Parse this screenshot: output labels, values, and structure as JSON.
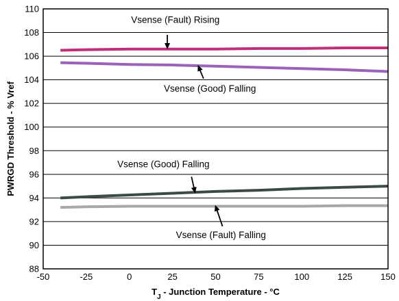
{
  "chart_data": {
    "type": "line",
    "xlabel_main": "T",
    "xlabel_sub": "J",
    "xlabel_rest": " - Junction Temperature - °C",
    "ylabel": "PWRGD Threshold - % Vref",
    "xlim": [
      -50,
      150
    ],
    "ylim": [
      88,
      110
    ],
    "xticks": [
      -50,
      -25,
      0,
      25,
      50,
      75,
      100,
      125,
      150
    ],
    "yticks": [
      88,
      90,
      92,
      94,
      96,
      98,
      100,
      102,
      104,
      106,
      108,
      110
    ],
    "grid": true,
    "series": [
      {
        "name": "Vsense (Fault) Rising",
        "color": "#c0307a",
        "x": [
          -40,
          -25,
          0,
          25,
          50,
          75,
          100,
          125,
          150
        ],
        "y": [
          106.5,
          106.55,
          106.6,
          106.6,
          106.6,
          106.65,
          106.65,
          106.7,
          106.7
        ]
      },
      {
        "name": "Vsense (Good) Falling",
        "color": "#9a62b8",
        "x": [
          -40,
          -25,
          0,
          25,
          50,
          75,
          100,
          125,
          150
        ],
        "y": [
          105.45,
          105.4,
          105.3,
          105.25,
          105.15,
          105.05,
          104.95,
          104.85,
          104.7
        ]
      },
      {
        "name": "Vsense (Good) Falling",
        "color": "#3c4a47",
        "x": [
          -40,
          -25,
          0,
          25,
          50,
          75,
          100,
          125,
          150
        ],
        "y": [
          94.0,
          94.1,
          94.25,
          94.4,
          94.55,
          94.65,
          94.8,
          94.9,
          95.0
        ]
      },
      {
        "name": "Vsense (Fault) Falling",
        "color": "#a8a8a8",
        "x": [
          -40,
          -25,
          0,
          25,
          50,
          75,
          100,
          125,
          150
        ],
        "y": [
          93.2,
          93.25,
          93.3,
          93.3,
          93.3,
          93.3,
          93.3,
          93.35,
          93.35
        ]
      }
    ],
    "annotations": [
      {
        "text": "Vsense (Fault) Rising",
        "series": 0,
        "text_x": 1,
        "text_y": 108.8,
        "arrow_from": [
          22,
          107.8
        ],
        "arrow_to": [
          22,
          106.7
        ]
      },
      {
        "text": "Vsense (Good) Falling",
        "series": 1,
        "text_x": 20,
        "text_y": 103.0,
        "arrow_from": [
          43,
          104.1
        ],
        "arrow_to": [
          40,
          105.15
        ]
      },
      {
        "text": "Vsense (Good) Falling",
        "series": 2,
        "text_x": -7,
        "text_y": 96.6,
        "arrow_from": [
          36,
          95.8
        ],
        "arrow_to": [
          38,
          94.5
        ]
      },
      {
        "text": "Vsense (Fault) Falling",
        "series": 3,
        "text_x": 27,
        "text_y": 90.6,
        "arrow_from": [
          54,
          91.6
        ],
        "arrow_to": [
          50,
          93.3
        ]
      }
    ]
  }
}
